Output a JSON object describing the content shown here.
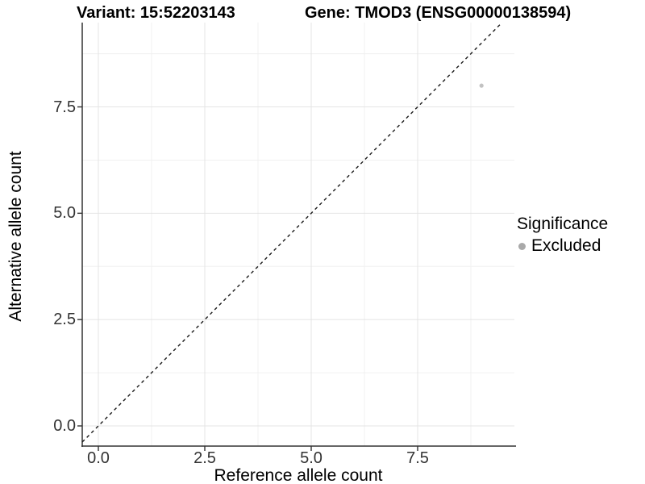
{
  "titles": {
    "variant": "Variant: 15:52203143",
    "gene": "Gene: TMOD3 (ENSG00000138594)"
  },
  "chart_data": {
    "type": "scatter",
    "title": "Variant: 15:52203143   Gene: TMOD3 (ENSG00000138594)",
    "xlabel": "Reference allele count",
    "ylabel": "Alternative allele count",
    "x_major_ticks": [
      0.0,
      2.5,
      5.0,
      7.5
    ],
    "y_major_ticks": [
      0.0,
      2.5,
      5.0,
      7.5
    ],
    "x_tick_labels": [
      "0.0",
      "2.5",
      "5.0",
      "7.5"
    ],
    "y_tick_labels": [
      "0.0",
      "2.5",
      "5.0",
      "7.5"
    ],
    "x_minor_ticks": [
      1.25,
      3.75,
      6.25,
      8.75
    ],
    "y_minor_ticks": [
      1.25,
      3.75,
      6.25,
      8.75
    ],
    "xlim": [
      -0.38,
      9.77
    ],
    "ylim": [
      -0.47,
      9.48
    ],
    "grid": true,
    "reference_line": {
      "type": "identity y=x",
      "style": "dashed"
    },
    "series": [
      {
        "name": "Excluded",
        "points": [
          {
            "x": 9,
            "y": 8
          }
        ]
      }
    ],
    "legend": {
      "title": "Significance",
      "position": "right",
      "items": [
        {
          "label": "Excluded"
        }
      ]
    }
  },
  "colors": {
    "point": "#c2c2c2",
    "legend_key": "#a9a9a9",
    "grid_major": "#e4e4e4",
    "grid_minor": "#f0f0f0",
    "axis_line": "#333333",
    "tick_text": "#333333",
    "dashed_line": "#1a1a1a"
  }
}
